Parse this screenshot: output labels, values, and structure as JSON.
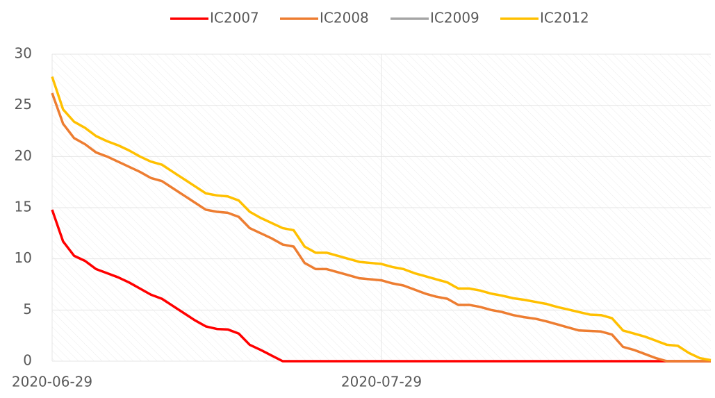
{
  "chart_data": {
    "type": "line",
    "x": [
      "2020-06-29",
      "2020-06-30",
      "2020-07-01",
      "2020-07-02",
      "2020-07-03",
      "2020-07-04",
      "2020-07-05",
      "2020-07-06",
      "2020-07-07",
      "2020-07-08",
      "2020-07-09",
      "2020-07-10",
      "2020-07-11",
      "2020-07-12",
      "2020-07-13",
      "2020-07-14",
      "2020-07-15",
      "2020-07-16",
      "2020-07-17",
      "2020-07-18",
      "2020-07-19",
      "2020-07-20",
      "2020-07-21",
      "2020-07-22",
      "2020-07-23",
      "2020-07-24",
      "2020-07-25",
      "2020-07-26",
      "2020-07-27",
      "2020-07-28",
      "2020-07-29",
      "2020-07-30",
      "2020-07-31",
      "2020-08-01",
      "2020-08-02",
      "2020-08-03",
      "2020-08-04",
      "2020-08-05",
      "2020-08-06",
      "2020-08-07",
      "2020-08-08",
      "2020-08-09",
      "2020-08-10",
      "2020-08-11",
      "2020-08-12",
      "2020-08-13",
      "2020-08-14",
      "2020-08-15",
      "2020-08-16",
      "2020-08-17",
      "2020-08-18",
      "2020-08-19",
      "2020-08-20",
      "2020-08-21",
      "2020-08-22",
      "2020-08-23",
      "2020-08-24",
      "2020-08-25",
      "2020-08-26",
      "2020-08-27",
      "2020-08-28"
    ],
    "series": [
      {
        "name": "IC2007",
        "color": "#ff0000",
        "values": [
          14.8,
          11.7,
          10.3,
          9.8,
          9.0,
          8.6,
          8.2,
          7.7,
          7.1,
          6.5,
          6.1,
          5.4,
          4.7,
          4.0,
          3.4,
          3.15,
          3.1,
          2.7,
          1.6,
          1.1,
          0.55,
          0,
          0,
          0,
          0,
          0,
          0,
          0,
          0,
          0,
          0,
          0,
          0,
          0,
          0,
          0,
          0,
          0,
          0,
          0,
          0,
          0,
          0,
          0,
          0,
          0,
          0,
          0,
          0,
          0,
          0,
          0,
          0,
          0,
          0,
          0,
          0,
          0,
          0,
          0,
          0
        ]
      },
      {
        "name": "IC2008",
        "color": "#ed7d31",
        "values": [
          26.2,
          23.2,
          21.8,
          21.2,
          20.4,
          20.0,
          19.5,
          19.0,
          18.5,
          17.9,
          17.6,
          16.9,
          16.2,
          15.5,
          14.8,
          14.6,
          14.5,
          14.1,
          13.0,
          12.5,
          12.0,
          11.4,
          11.2,
          9.6,
          9.0,
          9.0,
          8.7,
          8.4,
          8.1,
          8.0,
          7.9,
          7.6,
          7.4,
          7.0,
          6.6,
          6.3,
          6.1,
          5.5,
          5.5,
          5.3,
          5.0,
          4.8,
          4.5,
          4.3,
          4.15,
          3.9,
          3.6,
          3.3,
          3.0,
          2.95,
          2.9,
          2.6,
          1.4,
          1.1,
          0.7,
          0.3,
          0,
          0,
          0,
          0,
          0
        ]
      },
      {
        "name": "IC2009",
        "color": "#a5a5a5",
        "values": [
          null,
          null,
          null,
          null,
          null,
          null,
          null,
          null,
          null,
          null,
          null,
          null,
          null,
          null,
          null,
          null,
          null,
          null,
          null,
          null,
          null,
          null,
          null,
          null,
          null,
          null,
          null,
          null,
          null,
          null,
          null,
          null,
          null,
          null,
          null,
          null,
          null,
          null,
          null,
          null,
          null,
          null,
          null,
          null,
          null,
          null,
          null,
          null,
          null,
          null,
          null,
          null,
          null,
          null,
          null,
          null,
          null,
          null,
          null,
          null,
          null
        ]
      },
      {
        "name": "IC2012",
        "color": "#ffc000",
        "values": [
          27.8,
          24.6,
          23.4,
          22.8,
          22.0,
          21.5,
          21.1,
          20.6,
          20.0,
          19.5,
          19.2,
          18.5,
          17.8,
          17.1,
          16.4,
          16.2,
          16.1,
          15.7,
          14.6,
          14.0,
          13.5,
          13.0,
          12.8,
          11.2,
          10.6,
          10.6,
          10.3,
          10.0,
          9.7,
          9.6,
          9.5,
          9.2,
          9.0,
          8.6,
          8.3,
          8.0,
          7.7,
          7.1,
          7.1,
          6.9,
          6.6,
          6.4,
          6.15,
          6.0,
          5.8,
          5.6,
          5.3,
          5.05,
          4.8,
          4.55,
          4.5,
          4.2,
          3.0,
          2.7,
          2.4,
          2.0,
          1.6,
          1.5,
          0.8,
          0.3,
          0.1
        ]
      }
    ],
    "xlim": [
      "2020-06-29",
      "2020-08-28"
    ],
    "xticks": [
      "2020-06-29",
      "2020-07-29"
    ],
    "ylim": [
      0,
      30
    ],
    "yticks": [
      0,
      5,
      10,
      15,
      20,
      25,
      30
    ],
    "grid": true,
    "legend": "top"
  }
}
